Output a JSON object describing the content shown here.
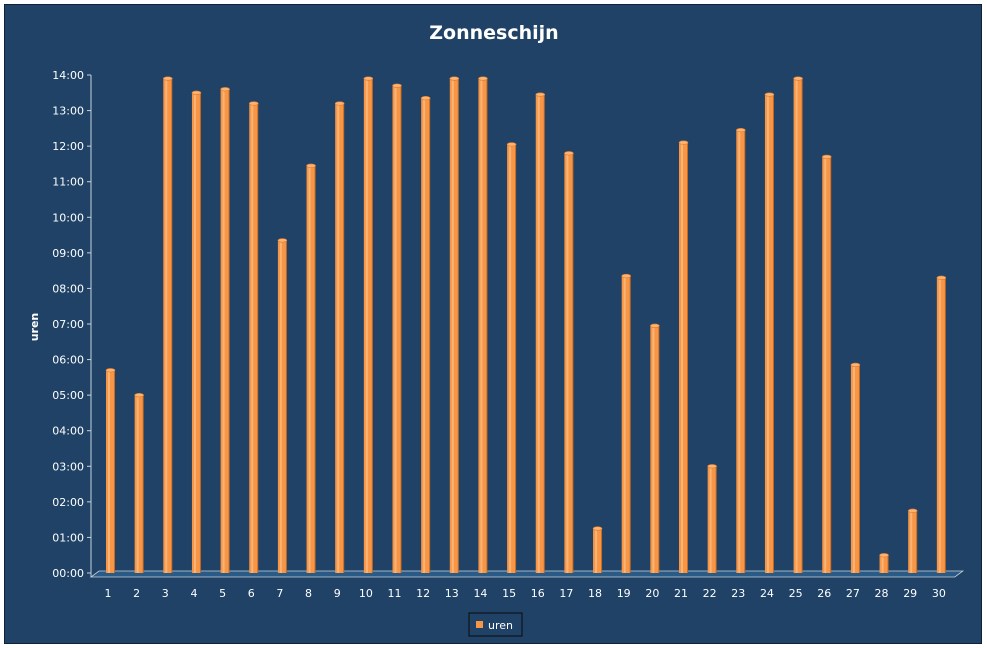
{
  "chart_data": {
    "type": "bar",
    "title": "Zonneschijn",
    "xlabel": "",
    "ylabel": "uren",
    "categories": [
      "1",
      "2",
      "3",
      "4",
      "5",
      "6",
      "7",
      "8",
      "9",
      "10",
      "11",
      "12",
      "13",
      "14",
      "15",
      "16",
      "17",
      "18",
      "19",
      "20",
      "21",
      "22",
      "23",
      "24",
      "25",
      "26",
      "27",
      "28",
      "29",
      "30"
    ],
    "series": [
      {
        "name": "uren",
        "color": "#f79646",
        "values": [
          5.7,
          5.0,
          13.9,
          13.5,
          13.6,
          13.2,
          9.35,
          11.45,
          13.2,
          13.9,
          13.7,
          13.35,
          13.9,
          13.9,
          12.05,
          13.45,
          11.8,
          1.25,
          8.35,
          6.95,
          12.1,
          3.0,
          12.45,
          13.45,
          13.9,
          11.7,
          5.85,
          0.5,
          1.75,
          8.3
        ]
      }
    ],
    "ylim": [
      0,
      14
    ],
    "yticks": [
      "00:00",
      "01:00",
      "02:00",
      "03:00",
      "04:00",
      "05:00",
      "06:00",
      "07:00",
      "08:00",
      "09:00",
      "10:00",
      "11:00",
      "12:00",
      "13:00",
      "14:00"
    ],
    "grid": false,
    "legend_position": "bottom"
  }
}
